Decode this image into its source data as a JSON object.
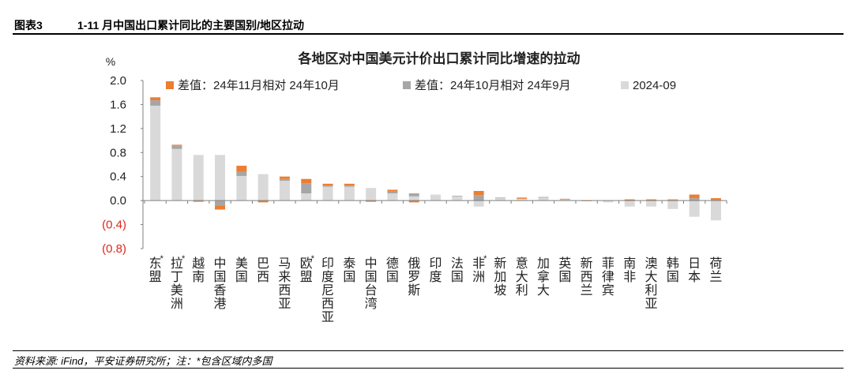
{
  "figure": {
    "number": "图表3",
    "title": "1-11 月中国出口累计同比的主要国别/地区拉动",
    "source": "资料来源: iFind，平安证券研究所；注：*包含区域内多国"
  },
  "colors": {
    "nov_vs_oct": "#ed7d31",
    "oct_vs_sep": "#a6a6a6",
    "sep_base": "#d9d9d9",
    "negative_tick": "#e0261b",
    "axis": "#7f7f7f"
  },
  "chart_data": {
    "type": "bar",
    "stacked": true,
    "title": "各地区对中国美元计价出口累计同比增速的拉动",
    "ylabel": "%",
    "ylim": [
      -0.8,
      2.0
    ],
    "yticks": [
      2.0,
      1.6,
      1.2,
      0.8,
      0.4,
      0.0,
      -0.4,
      -0.8
    ],
    "ytick_labels": [
      "2.0",
      "1.6",
      "1.2",
      "0.8",
      "0.4",
      "0.0",
      "(0.4)",
      "(0.8)"
    ],
    "legend_position": "top",
    "categories": [
      "东盟",
      "拉丁美洲",
      "越南",
      "中国香港",
      "美国",
      "巴西",
      "马来西亚",
      "欧盟",
      "印度尼西亚",
      "泰国",
      "中国台湾",
      "德国",
      "俄罗斯",
      "印度",
      "法国",
      "非洲",
      "新加坡",
      "意大利",
      "加拿大",
      "英国",
      "新西兰",
      "菲律宾",
      "南非",
      "澳大利亚",
      "韩国",
      "日本",
      "荷兰"
    ],
    "starred": [
      "东盟",
      "拉丁美洲",
      "欧盟",
      "非洲"
    ],
    "series": [
      {
        "name": "2024-09",
        "values": [
          1.58,
          0.86,
          0.76,
          0.76,
          0.41,
          0.44,
          0.33,
          0.12,
          0.23,
          0.23,
          0.21,
          0.12,
          0.07,
          0.1,
          0.07,
          -0.1,
          0.04,
          0.03,
          0.05,
          0.02,
          0.0,
          -0.03,
          -0.1,
          -0.1,
          -0.14,
          -0.27,
          -0.33
        ]
      },
      {
        "name": "差值：24年10月相对 24年9月",
        "values": [
          0.09,
          0.06,
          0.0,
          -0.09,
          0.07,
          0.0,
          0.03,
          0.17,
          0.02,
          0.02,
          0.0,
          0.03,
          0.05,
          0.0,
          0.01,
          0.09,
          0.01,
          0.0,
          0.01,
          0.0,
          0.0,
          0.0,
          0.0,
          0.0,
          0.01,
          0.04,
          0.01
        ]
      },
      {
        "name": "差值：24年11月相对 24年10月",
        "values": [
          0.05,
          0.01,
          -0.02,
          -0.06,
          0.1,
          -0.03,
          0.04,
          0.07,
          0.03,
          0.03,
          -0.02,
          0.03,
          -0.03,
          0.0,
          0.0,
          0.07,
          0.0,
          0.02,
          0.0,
          0.01,
          -0.01,
          0.0,
          0.02,
          0.02,
          0.01,
          0.06,
          0.03
        ]
      }
    ],
    "legend": [
      "差值：24年11月相对 24年10月",
      "差值：24年10月相对 24年9月",
      "2024-09"
    ]
  }
}
